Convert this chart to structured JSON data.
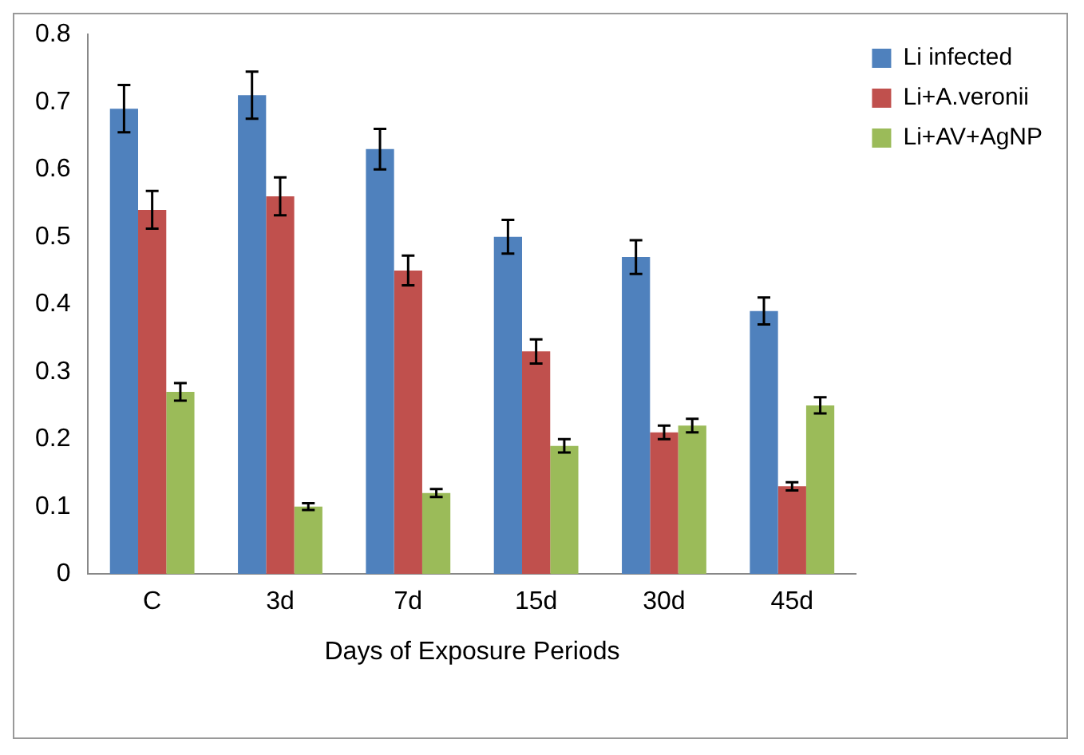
{
  "chart_data": {
    "type": "bar",
    "xlabel": "Days of Exposure Periods",
    "categories": [
      "C",
      "3d",
      "7d",
      "15d",
      "30d",
      "45d"
    ],
    "series": [
      {
        "name": "Li infected",
        "color": "#4f81bd",
        "values": [
          0.69,
          0.71,
          0.63,
          0.5,
          0.47,
          0.39
        ],
        "errors": [
          0.035,
          0.035,
          0.03,
          0.025,
          0.025,
          0.02
        ]
      },
      {
        "name": "Li+A.veronii",
        "color": "#c0504d",
        "values": [
          0.54,
          0.56,
          0.45,
          0.33,
          0.21,
          0.13
        ],
        "errors": [
          0.028,
          0.028,
          0.022,
          0.018,
          0.01,
          0.006
        ]
      },
      {
        "name": "Li+AV+AgNP",
        "color": "#9bbb59",
        "values": [
          0.27,
          0.1,
          0.12,
          0.19,
          0.22,
          0.25
        ],
        "errors": [
          0.013,
          0.005,
          0.006,
          0.01,
          0.01,
          0.012
        ]
      }
    ],
    "ylim": [
      0,
      0.8
    ],
    "yticks": [
      0,
      0.1,
      0.2,
      0.3,
      0.4,
      0.5,
      0.6,
      0.7,
      0.8
    ],
    "grid": false,
    "legend": "top right"
  }
}
